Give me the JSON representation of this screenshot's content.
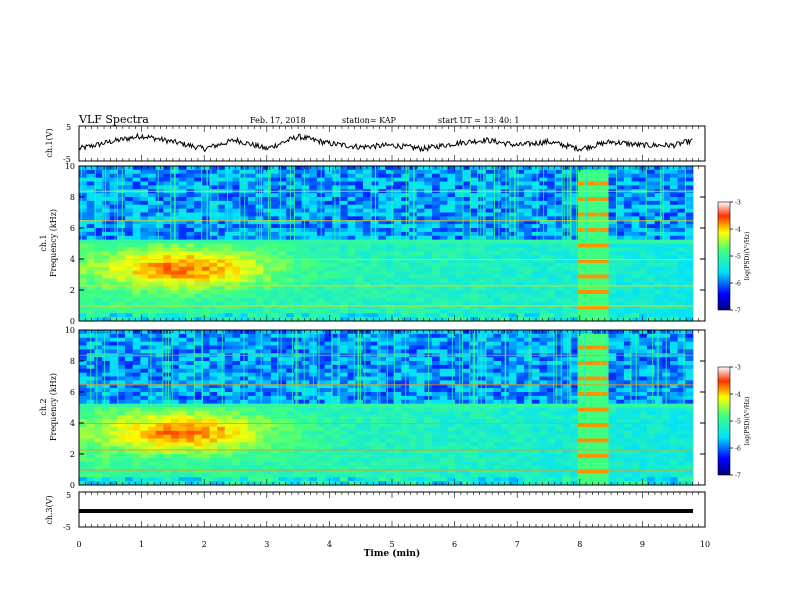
{
  "header": {
    "title": "VLF Spectra",
    "date": "Feb. 17, 2018",
    "station": "station= KAP",
    "start_time": "start  UT =   13: 40: 1"
  },
  "chart_data": [
    {
      "type": "line",
      "panel": "ch1-waveform",
      "ylabel": "ch.1(V)",
      "yticks": [
        "5",
        "-5"
      ],
      "ylim": [
        -5,
        5
      ],
      "xlim": [
        0,
        10
      ],
      "series": [
        {
          "x": [
            0,
            0.5,
            1.0,
            1.5,
            2.0,
            2.5,
            3.0,
            3.5,
            4.0,
            4.5,
            5.0,
            5.5,
            6.0,
            6.5,
            7.0,
            7.5,
            8.0,
            8.5,
            9.0,
            9.5,
            9.8
          ],
          "values": [
            -1.5,
            0.5,
            2.2,
            0.5,
            -1.5,
            1.0,
            -1.5,
            2.0,
            0.0,
            -1.0,
            -0.5,
            -1.5,
            0.0,
            1.0,
            -0.5,
            0.5,
            -1.5,
            0.5,
            -0.5,
            -0.5,
            0.8
          ]
        }
      ]
    },
    {
      "type": "heatmap",
      "panel": "ch1-spectrogram",
      "ylabel": "ch.1\nFrequency (kHz)",
      "yticks": [
        "0",
        "2",
        "4",
        "6",
        "8",
        "10"
      ],
      "ylim": [
        0,
        10
      ],
      "xlim": [
        0,
        10
      ],
      "colorbar": {
        "label": "log(PSD)(V²/Hz)",
        "ticks": [
          "-3",
          "-4",
          "-5",
          "-6",
          "-7"
        ],
        "range": [
          -7,
          -3
        ]
      }
    },
    {
      "type": "heatmap",
      "panel": "ch2-spectrogram",
      "ylabel": "ch.2\nFrequency (kHz)",
      "yticks": [
        "0",
        "2",
        "4",
        "6",
        "8",
        "10"
      ],
      "ylim": [
        0,
        10
      ],
      "xlim": [
        0,
        10
      ],
      "colorbar": {
        "label": "log(PSD)(V²/Hz)",
        "ticks": [
          "-3",
          "-4",
          "-5",
          "-6",
          "-7"
        ],
        "range": [
          -7,
          -3
        ]
      }
    },
    {
      "type": "line",
      "panel": "ch3-waveform",
      "ylabel": "ch.3(V)",
      "yticks": [
        "5",
        "-5"
      ],
      "ylim": [
        -5,
        5
      ],
      "xlim": [
        0,
        10
      ],
      "series": [
        {
          "x": [
            0,
            9.8
          ],
          "values": [
            0,
            0
          ]
        }
      ]
    }
  ],
  "xaxis": {
    "label": "Time  (min)",
    "ticks": [
      "0",
      "1",
      "2",
      "3",
      "4",
      "5",
      "6",
      "7",
      "8",
      "9",
      "10"
    ]
  }
}
